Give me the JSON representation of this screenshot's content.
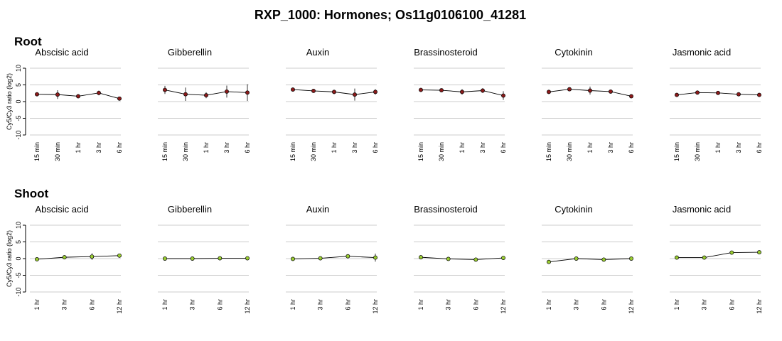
{
  "title": "RXP_1000: Hormones; Os11g0106100_41281",
  "ylabel": "Cy5/Cy3 ratio (log2)",
  "colors": {
    "root_marker": "#8b1a1a",
    "shoot_marker": "#9acd32",
    "line": "#000000",
    "grid": "#cccccc"
  },
  "chart_data": [
    {
      "type": "line",
      "panel": "Root",
      "x": [
        "15 min",
        "30 min",
        "1 hr",
        "3 hr",
        "6 hr"
      ],
      "ylim": [
        -10,
        10
      ],
      "yticks": [
        10,
        5,
        0,
        -5,
        -10
      ],
      "grid": true,
      "series": [
        {
          "name": "Abscisic acid",
          "values": [
            2.2,
            2.1,
            1.6,
            2.6,
            0.9
          ],
          "err": [
            0.3,
            1.3,
            0.4,
            0.7,
            0.4
          ]
        },
        {
          "name": "Gibberellin",
          "values": [
            3.5,
            2.2,
            1.9,
            3.0,
            2.7
          ],
          "err": [
            1.2,
            2.0,
            0.9,
            1.8,
            2.5
          ]
        },
        {
          "name": "Auxin",
          "values": [
            3.6,
            3.2,
            2.9,
            2.1,
            2.9
          ],
          "err": [
            0.5,
            0.4,
            0.6,
            1.8,
            0.8
          ]
        },
        {
          "name": "Brassinosteroid",
          "values": [
            3.5,
            3.4,
            2.9,
            3.3,
            1.8
          ],
          "err": [
            0.5,
            0.5,
            0.8,
            0.7,
            1.3
          ]
        },
        {
          "name": "Cytokinin",
          "values": [
            2.9,
            3.7,
            3.3,
            3.0,
            1.6
          ],
          "err": [
            0.5,
            0.4,
            1.2,
            0.5,
            0.5
          ]
        },
        {
          "name": "Jasmonic acid",
          "values": [
            2.0,
            2.7,
            2.6,
            2.2,
            2.0
          ],
          "err": [
            0.3,
            0.3,
            0.3,
            0.3,
            0.3
          ]
        }
      ]
    },
    {
      "type": "line",
      "panel": "Shoot",
      "x": [
        "1 hr",
        "3 hr",
        "6 hr",
        "12 hr"
      ],
      "ylim": [
        -10,
        10
      ],
      "yticks": [
        10,
        5,
        0,
        -5,
        -10
      ],
      "grid": true,
      "series": [
        {
          "name": "Abscisic acid",
          "values": [
            -0.2,
            0.4,
            0.6,
            0.9
          ],
          "err": [
            0.2,
            0.3,
            1.0,
            0.3
          ]
        },
        {
          "name": "Gibberellin",
          "values": [
            0.0,
            0.0,
            0.1,
            0.1
          ],
          "err": [
            0.1,
            0.1,
            0.2,
            0.1
          ]
        },
        {
          "name": "Auxin",
          "values": [
            -0.1,
            0.1,
            0.7,
            0.3
          ],
          "err": [
            0.2,
            0.2,
            0.3,
            1.2
          ]
        },
        {
          "name": "Brassinosteroid",
          "values": [
            0.4,
            -0.1,
            -0.3,
            0.2
          ],
          "err": [
            0.2,
            0.2,
            0.2,
            0.2
          ]
        },
        {
          "name": "Cytokinin",
          "values": [
            -1.0,
            0.0,
            -0.3,
            0.0
          ],
          "err": [
            0.5,
            0.2,
            0.2,
            0.2
          ]
        },
        {
          "name": "Jasmonic acid",
          "values": [
            0.3,
            0.3,
            1.8,
            1.9
          ],
          "err": [
            0.2,
            0.2,
            0.3,
            0.2
          ]
        }
      ]
    }
  ]
}
